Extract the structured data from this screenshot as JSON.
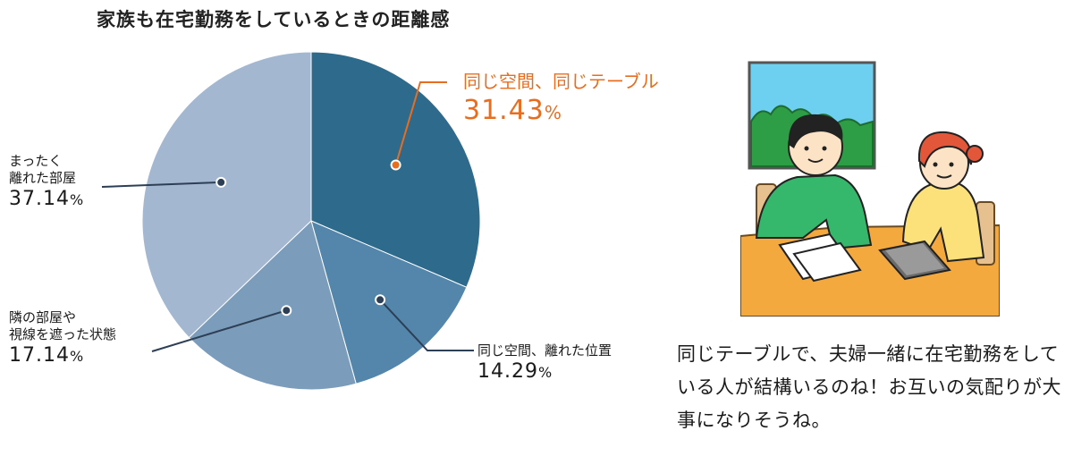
{
  "chart_data": {
    "type": "pie",
    "title": "家族も在宅勤務をしているときの距離感",
    "slices": [
      {
        "label": "同じ空間、同じテーブル",
        "value": 31.43,
        "value_label": "31.43",
        "color": "#2E6A8C",
        "highlight": true
      },
      {
        "label": "同じ空間、離れた位置",
        "value": 14.29,
        "value_label": "14.29",
        "color": "#5386AA"
      },
      {
        "label": "隣の部屋や\n視線を遮った状態",
        "value": 17.14,
        "value_label": "17.14",
        "color": "#7C9CBB"
      },
      {
        "label": "まったく\n離れた部屋",
        "value": 37.14,
        "value_label": "37.14",
        "color": "#A4B7D0"
      }
    ],
    "unit": "%",
    "start": "12 o'clock",
    "direction": "clockwise",
    "highlight_color": "#E96D1F",
    "leader_color": "#2D3F55"
  },
  "caption": "同じテーブルで、夫婦一緒に在宅勤務をしている人が結構いるのね！お互いの気配りが大事になりそうね。",
  "illustration": {
    "description_icon": "couple-working-at-table-illustration"
  }
}
